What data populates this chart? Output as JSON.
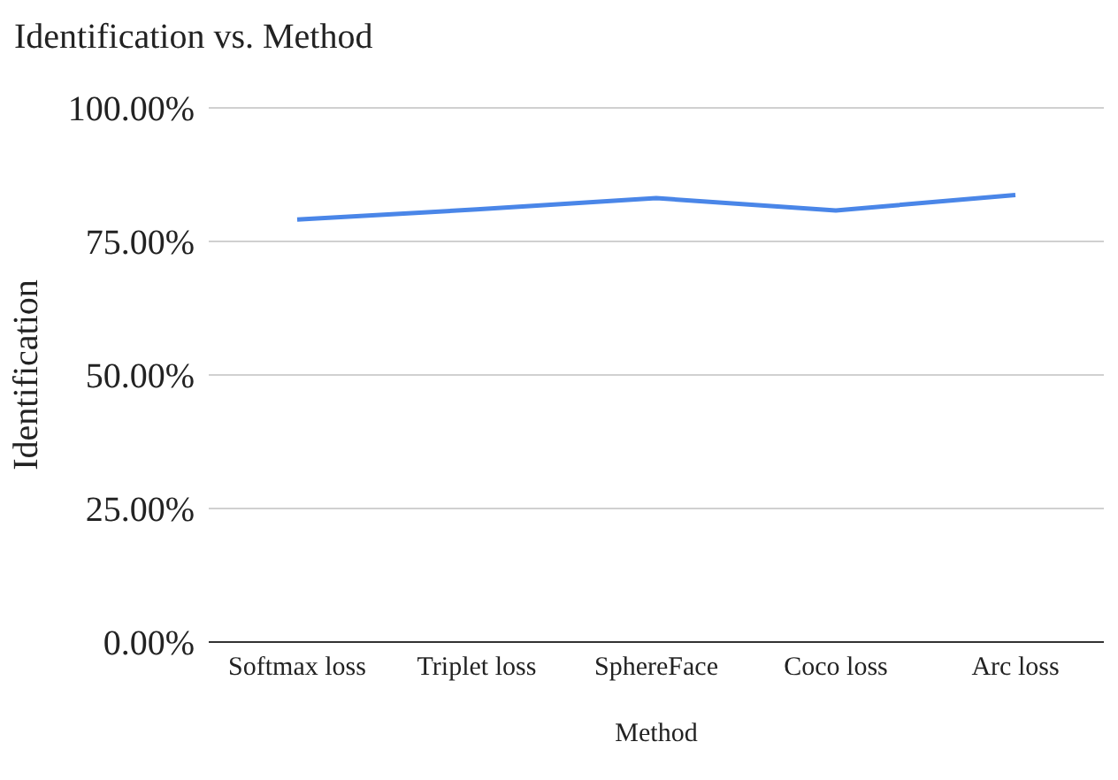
{
  "chart_data": {
    "type": "line",
    "title": "Identification vs. Method",
    "xlabel": "Method",
    "ylabel": "Identification",
    "categories": [
      "Softmax loss",
      "Triplet loss",
      "SphereFace",
      "Coco loss",
      "Arc loss"
    ],
    "series": [
      {
        "color": "#4a86e8",
        "values": [
          79.1,
          81.0,
          83.1,
          80.8,
          83.7
        ]
      }
    ],
    "ylim": [
      0,
      100
    ],
    "yticks": [
      {
        "value": 0,
        "label": "0.00%"
      },
      {
        "value": 25,
        "label": "25.00%"
      },
      {
        "value": 50,
        "label": "50.00%"
      },
      {
        "value": 75,
        "label": "75.00%"
      },
      {
        "value": 100,
        "label": "100.00%"
      }
    ],
    "grid": "y",
    "legend": false,
    "marker": "none",
    "line_style": "solid"
  }
}
